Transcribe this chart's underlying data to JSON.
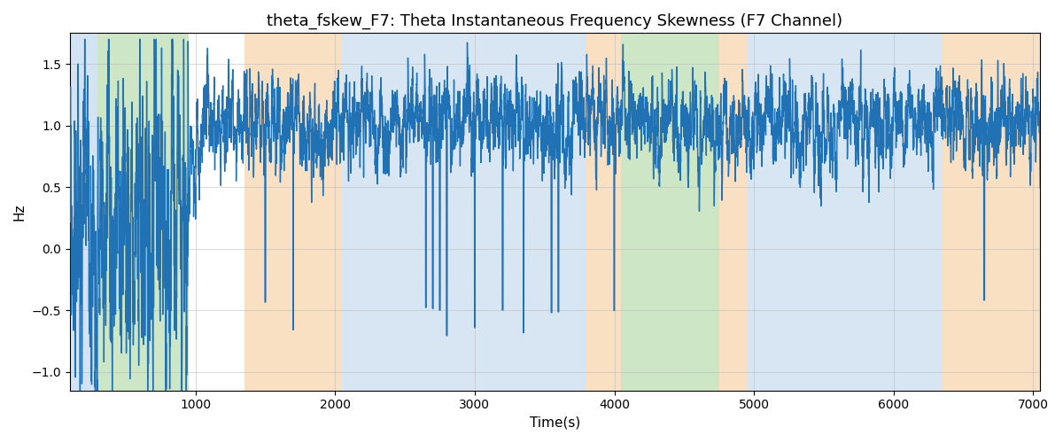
{
  "title": "theta_fskew_F7: Theta Instantaneous Frequency Skewness (F7 Channel)",
  "xlabel": "Time(s)",
  "ylabel": "Hz",
  "xlim": [
    100,
    7050
  ],
  "ylim": [
    -1.15,
    1.75
  ],
  "line_color": "#2171b5",
  "line_width": 1.0,
  "bg_color": "#ffffff",
  "grid_color": "#bbbbbb",
  "title_fontsize": 13,
  "label_fontsize": 11,
  "tick_fontsize": 10,
  "bands": [
    {
      "xmin": 100,
      "xmax": 300,
      "color": "#aac8e8",
      "alpha": 0.5
    },
    {
      "xmin": 300,
      "xmax": 950,
      "color": "#90c880",
      "alpha": 0.45
    },
    {
      "xmin": 1350,
      "xmax": 2050,
      "color": "#f5c890",
      "alpha": 0.55
    },
    {
      "xmin": 2050,
      "xmax": 3800,
      "color": "#aac8e8",
      "alpha": 0.45
    },
    {
      "xmin": 3800,
      "xmax": 4050,
      "color": "#f5c890",
      "alpha": 0.55
    },
    {
      "xmin": 4050,
      "xmax": 4750,
      "color": "#90c880",
      "alpha": 0.45
    },
    {
      "xmin": 4750,
      "xmax": 4950,
      "color": "#f5c890",
      "alpha": 0.55
    },
    {
      "xmin": 4950,
      "xmax": 6350,
      "color": "#aac8e8",
      "alpha": 0.45
    },
    {
      "xmin": 6350,
      "xmax": 7100,
      "color": "#f5c890",
      "alpha": 0.55
    }
  ],
  "xticks": [
    1000,
    2000,
    3000,
    4000,
    5000,
    6000,
    7000
  ],
  "yticks": [
    -1.0,
    -0.5,
    0.0,
    0.5,
    1.0,
    1.5
  ]
}
